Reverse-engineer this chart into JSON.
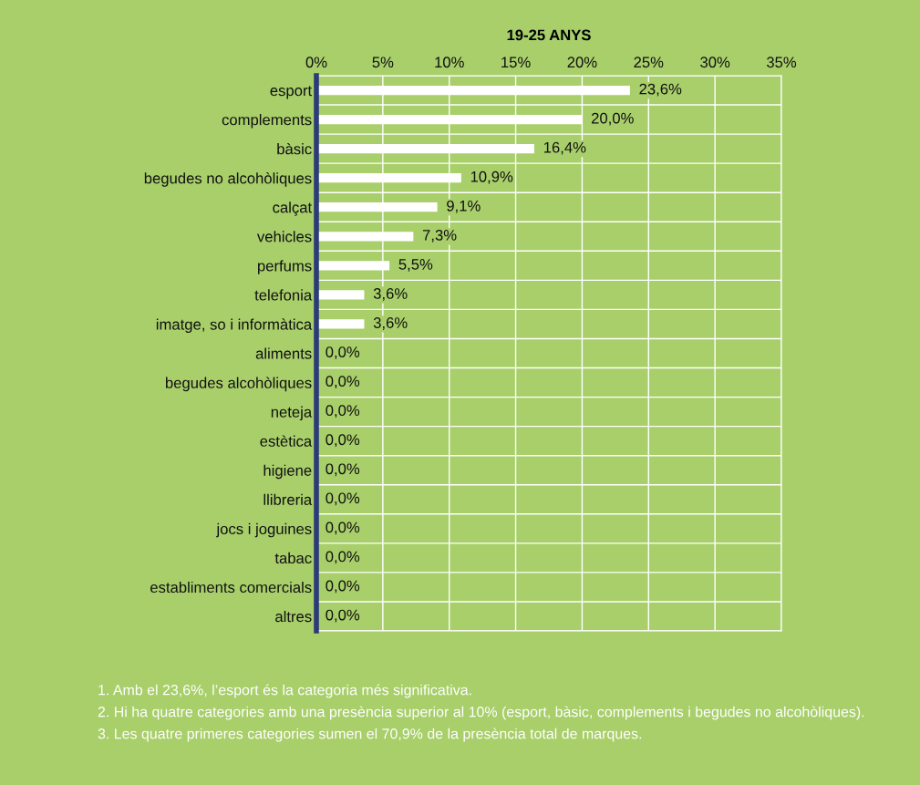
{
  "chart_data": {
    "type": "bar",
    "orientation": "horizontal",
    "title": "19-25 ANYS",
    "categories": [
      "esport",
      "complements",
      "bàsic",
      "begudes no alcohòliques",
      "calçat",
      "vehicles",
      "perfums",
      "telefonia",
      "imatge, so i informàtica",
      "aliments",
      "begudes alcohòliques",
      "neteja",
      "estètica",
      "higiene",
      "llibreria",
      "jocs i joguines",
      "tabac",
      "establiments comercials",
      "altres"
    ],
    "values": [
      23.6,
      20.0,
      16.4,
      10.9,
      9.1,
      7.3,
      5.5,
      3.6,
      3.6,
      0,
      0,
      0,
      0,
      0,
      0,
      0,
      0,
      0,
      0
    ],
    "value_labels": [
      "23,6%",
      "20,0%",
      "16,4%",
      "10,9%",
      "9,1%",
      "7,3%",
      "5,5%",
      "3,6%",
      "3,6%",
      "0,0%",
      "0,0%",
      "0,0%",
      "0,0%",
      "0,0%",
      "0,0%",
      "0,0%",
      "0,0%",
      "0,0%",
      "0,0%"
    ],
    "color": "#ffffff",
    "xlim": [
      0,
      35
    ],
    "xticks": [
      {
        "value": 0,
        "label": "0%"
      },
      {
        "value": 5,
        "label": "5%"
      },
      {
        "value": 10,
        "label": "10%"
      },
      {
        "value": 15,
        "label": "15%"
      },
      {
        "value": 20,
        "label": "20%"
      },
      {
        "value": 25,
        "label": "25%"
      },
      {
        "value": 30,
        "label": "30%"
      },
      {
        "value": 35,
        "label": "35%"
      }
    ],
    "grid": true,
    "annotations": [
      "1. Amb el 23,6%, l’esport és la categoria més significativa.",
      "2. Hi ha quatre categories amb una presència superior al 10% (esport, bàsic, complements i begudes no alcohòliques).",
      "3. Les quatre primeres categories sumen el 70,9% de la presència total de marques."
    ]
  }
}
